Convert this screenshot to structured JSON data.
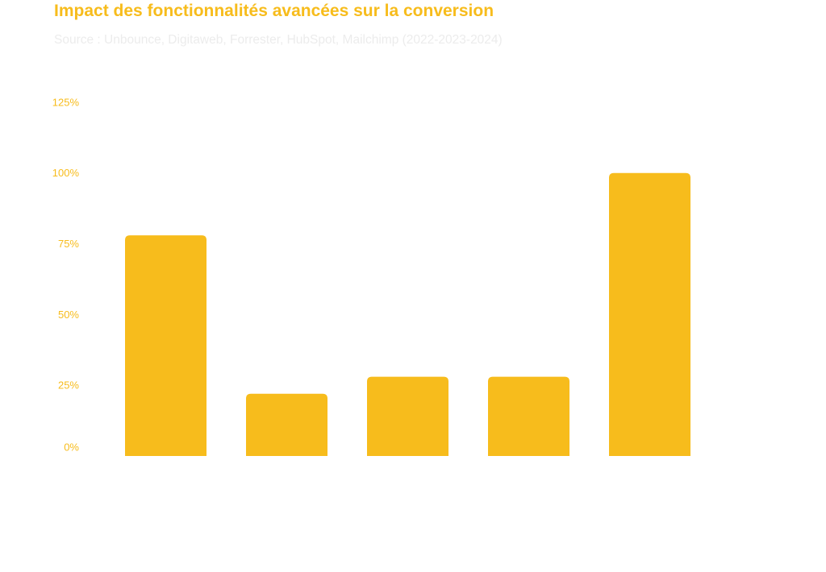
{
  "title": "Impact des fonctionnalités avancées sur la conversion",
  "subtitle": "Source : Unbounce, Digitaweb, Forrester, HubSpot, Mailchimp (2022-2023-2024)",
  "colors": {
    "accent": "#F7BC1C",
    "bar": "#F7BC1C",
    "subtitle": "#ececec"
  },
  "chart_data": {
    "type": "bar",
    "title": "Impact des fonctionnalités avancées sur la conversion",
    "subtitle": "Source : Unbounce, Digitaweb, Forrester, HubSpot, Mailchimp (2022-2023-2024)",
    "categories": [
      "",
      "",
      "",
      "",
      ""
    ],
    "values": [
      78,
      22,
      28,
      28,
      100
    ],
    "ylim": [
      0,
      125
    ],
    "yticks": [
      0,
      25,
      50,
      75,
      100,
      125
    ],
    "ytick_labels": [
      "0%",
      "25%",
      "50%",
      "75%",
      "100%",
      "125%"
    ],
    "xlabel": "",
    "ylabel": "",
    "grid": false,
    "legend": "none"
  }
}
